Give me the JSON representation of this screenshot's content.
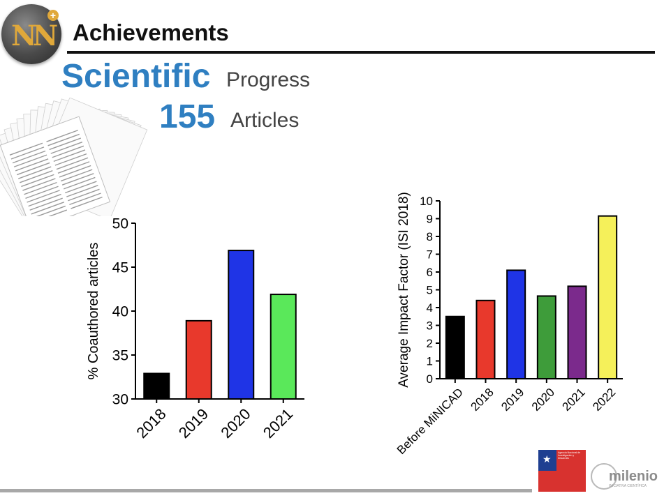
{
  "header": {
    "title": "Achievements",
    "subtitle_big": "Scientific",
    "subtitle_small": "Progress",
    "count_big": "155",
    "count_small": "Articles"
  },
  "footer": {
    "agency_text": "Agencia Nacional de Investigación y Desarrollo",
    "milenio_name": "milenio",
    "milenio_sub": "INICIATIVA CIENTÍFICA"
  },
  "chart_data": [
    {
      "type": "bar",
      "ylabel": "% Coauthored articles",
      "ylim": [
        30,
        50
      ],
      "yticks": [
        30,
        35,
        40,
        45,
        50
      ],
      "categories": [
        "2018",
        "2019",
        "2020",
        "2021"
      ],
      "values": [
        32.9,
        38.9,
        46.9,
        41.9
      ],
      "colors": [
        "#000000",
        "#e8392c",
        "#1f34e6",
        "#5ae85a"
      ]
    },
    {
      "type": "bar",
      "ylabel": "Average Impact Factor (ISI 2018)",
      "ylim": [
        0,
        10
      ],
      "yticks": [
        0,
        1,
        2,
        3,
        4,
        5,
        6,
        7,
        8,
        9,
        10
      ],
      "categories": [
        "Before MiNICAD",
        "2018",
        "2019",
        "2020",
        "2021",
        "2022"
      ],
      "values": [
        3.5,
        4.4,
        6.1,
        4.65,
        5.2,
        9.15
      ],
      "colors": [
        "#000000",
        "#e8392c",
        "#1f34e6",
        "#3e9c3a",
        "#7b2a8c",
        "#f5f05a"
      ]
    }
  ]
}
